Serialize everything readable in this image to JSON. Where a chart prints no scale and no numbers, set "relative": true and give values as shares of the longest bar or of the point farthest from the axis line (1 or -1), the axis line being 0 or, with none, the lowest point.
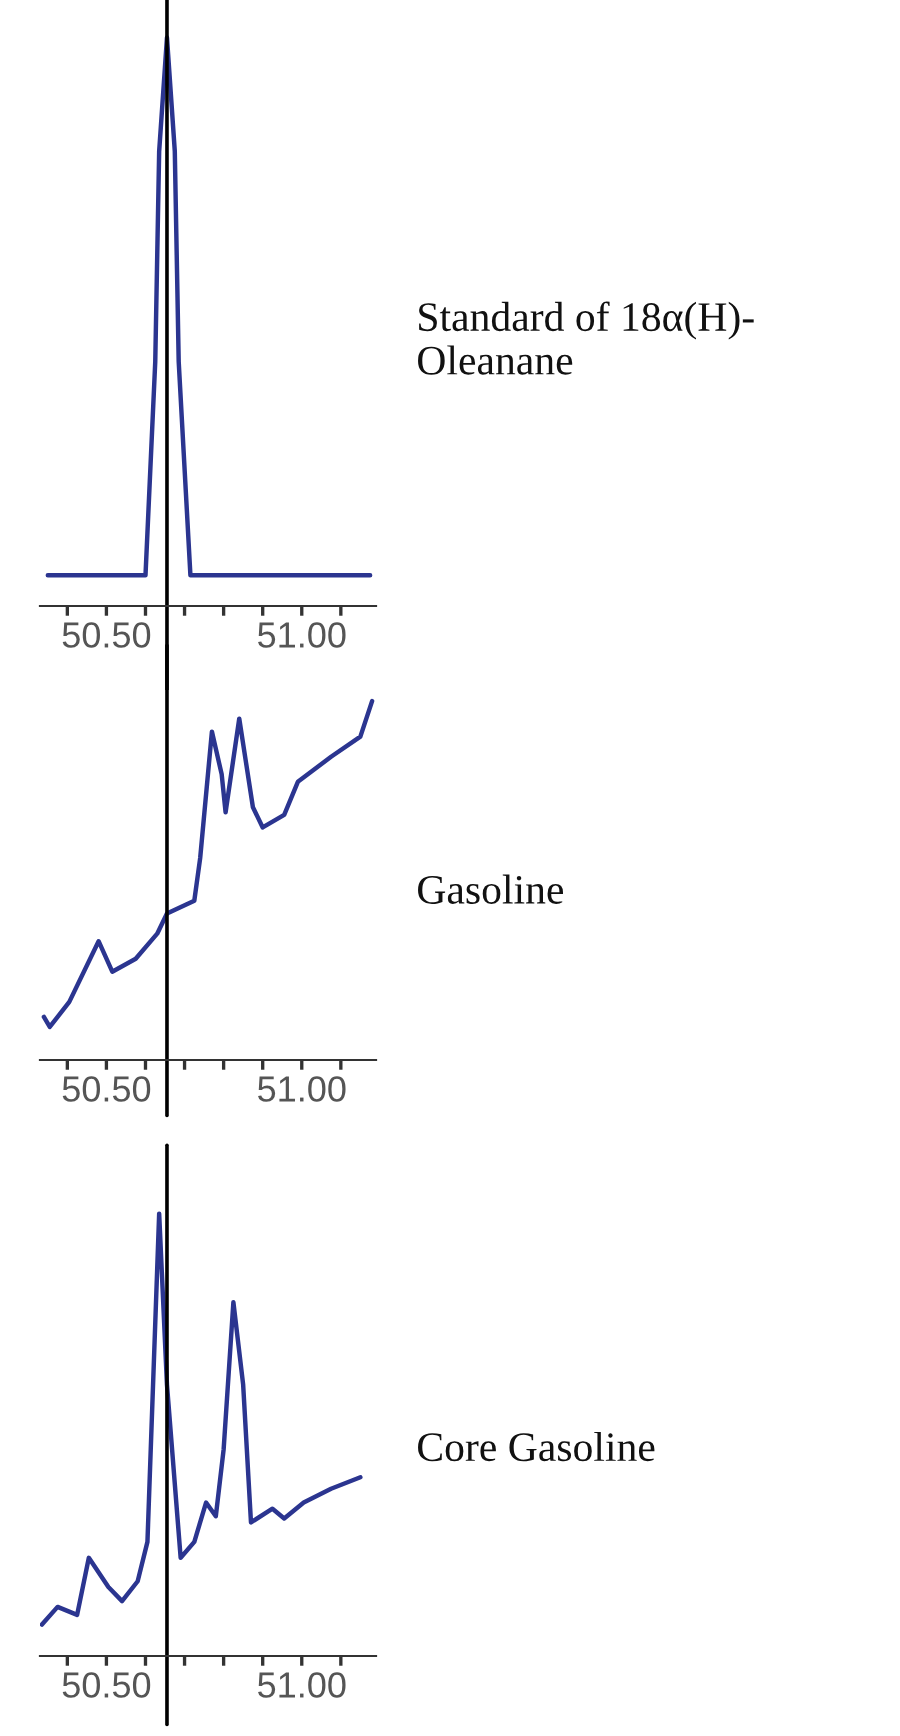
{
  "chart_data": [
    {
      "type": "line",
      "relative": true,
      "tick_labels": "x",
      "xlim": [
        50.33,
        51.19
      ],
      "xticks": [
        {
          "value": 50.4,
          "label": null
        },
        {
          "value": 50.5,
          "label": "50.50"
        },
        {
          "value": 50.6,
          "label": null
        },
        {
          "value": 50.7,
          "label": null
        },
        {
          "value": 50.8,
          "label": null
        },
        {
          "value": 50.9,
          "label": null
        },
        {
          "value": 51.0,
          "label": "51.00"
        },
        {
          "value": 51.1,
          "label": null
        }
      ],
      "x": [
        50.35,
        50.6,
        50.625,
        50.635,
        50.655,
        50.675,
        50.685,
        50.715,
        51.175
      ],
      "series": [
        {
          "color": "#2b3590",
          "values": [
            0.054,
            0.054,
            0.43,
            0.8,
            1.0,
            0.8,
            0.43,
            0.054,
            0.054
          ]
        }
      ],
      "ref_lines": [
        {
          "axis": "x",
          "value": 50.655,
          "color": "#000000"
        }
      ],
      "annotations": [
        "Standard of 18α(H)-\nOleanane"
      ]
    },
    {
      "type": "line",
      "relative": true,
      "tick_labels": "x",
      "xlim": [
        50.33,
        51.19
      ],
      "xticks": [
        {
          "value": 50.4,
          "label": null
        },
        {
          "value": 50.5,
          "label": "50.50"
        },
        {
          "value": 50.6,
          "label": null
        },
        {
          "value": 50.7,
          "label": null
        },
        {
          "value": 50.8,
          "label": null
        },
        {
          "value": 50.9,
          "label": null
        },
        {
          "value": 51.0,
          "label": "51.00"
        },
        {
          "value": 51.1,
          "label": null
        }
      ],
      "x": [
        50.34,
        50.355,
        50.405,
        50.48,
        50.515,
        50.575,
        50.63,
        50.655,
        50.725,
        50.74,
        50.77,
        50.795,
        50.805,
        50.84,
        50.875,
        50.9,
        50.955,
        50.99,
        51.075,
        51.15,
        51.18
      ],
      "series": [
        {
          "color": "#2b3590",
          "values": [
            0.12,
            0.092,
            0.162,
            0.331,
            0.246,
            0.282,
            0.352,
            0.408,
            0.444,
            0.563,
            0.915,
            0.796,
            0.69,
            0.951,
            0.704,
            0.648,
            0.683,
            0.775,
            0.845,
            0.901,
            1.0
          ]
        }
      ],
      "ref_lines": [
        {
          "axis": "x",
          "value": 50.655,
          "color": "#000000"
        }
      ],
      "annotations": [
        "Gasoline"
      ]
    },
    {
      "type": "line",
      "relative": true,
      "tick_labels": "x",
      "xlim": [
        50.33,
        51.19
      ],
      "xticks": [
        {
          "value": 50.4,
          "label": null
        },
        {
          "value": 50.5,
          "label": "50.50"
        },
        {
          "value": 50.6,
          "label": null
        },
        {
          "value": 50.7,
          "label": null
        },
        {
          "value": 50.8,
          "label": null
        },
        {
          "value": 50.9,
          "label": null
        },
        {
          "value": 51.0,
          "label": "51.00"
        },
        {
          "value": 51.1,
          "label": null
        }
      ],
      "x": [
        50.335,
        50.375,
        50.425,
        50.455,
        50.505,
        50.54,
        50.58,
        50.605,
        50.635,
        50.655,
        50.69,
        50.725,
        50.755,
        50.78,
        50.8,
        50.825,
        50.85,
        50.87,
        50.925,
        50.955,
        51.005,
        51.075,
        51.15
      ],
      "series": [
        {
          "color": "#2b3590",
          "values": [
            0.071,
            0.111,
            0.093,
            0.222,
            0.156,
            0.124,
            0.169,
            0.258,
            1.0,
            0.613,
            0.222,
            0.258,
            0.347,
            0.316,
            0.467,
            0.8,
            0.613,
            0.302,
            0.333,
            0.311,
            0.347,
            0.378,
            0.404
          ]
        }
      ],
      "ref_lines": [
        {
          "axis": "x",
          "value": 50.655,
          "color": "#000000"
        }
      ],
      "annotations": [
        "Core Gasoline"
      ]
    }
  ]
}
